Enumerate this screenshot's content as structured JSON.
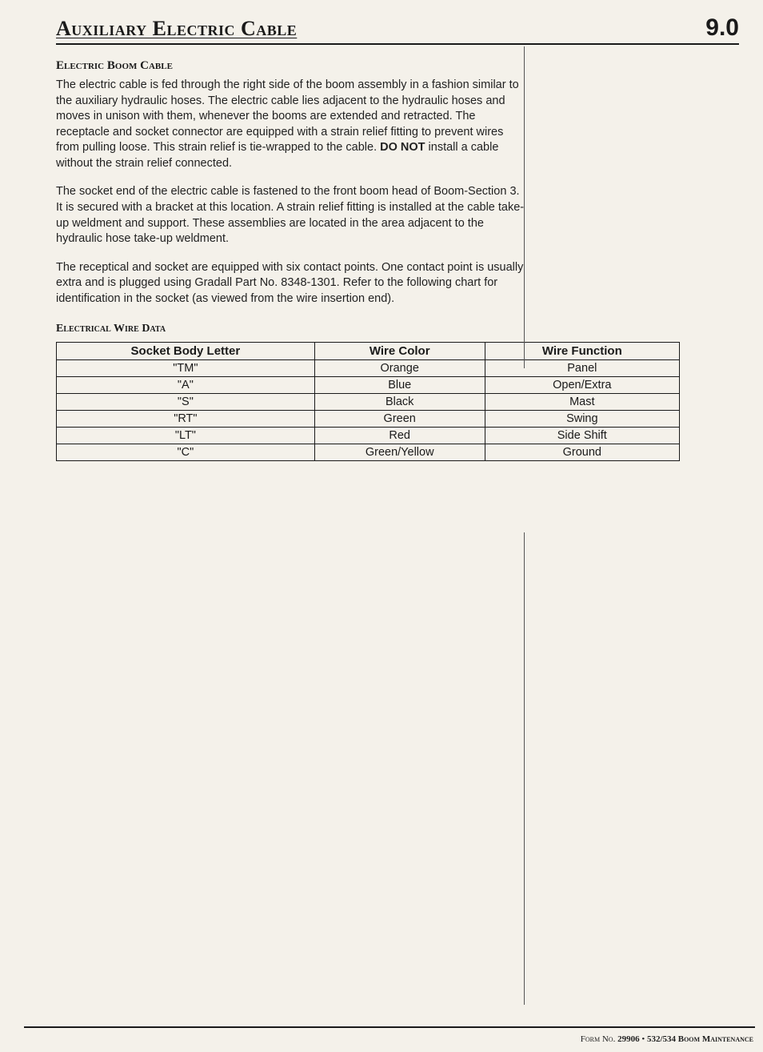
{
  "header": {
    "title": "Auxiliary Electric Cable",
    "section_number": "9.0"
  },
  "section1": {
    "heading": "Electric Boom Cable",
    "para1_a": "The electric cable is fed through the right side of the boom assembly in a fashion similar to the auxiliary hydraulic hoses. The electric cable lies adjacent to the hydraulic hoses and moves in unison with them, whenever the booms are extended and retracted. The receptacle and socket connector are equipped with a strain relief fitting to prevent wires from pulling loose. This strain relief is tie-wrapped to the cable. ",
    "para1_bold": "DO NOT",
    "para1_b": " install a cable without the strain relief connected.",
    "para2": "The socket end of the electric cable is fastened to the front boom head of Boom-Section 3. It is secured with a bracket at this location. A strain relief fitting is installed at the cable take-up weldment and support. These assemblies are located in the area adjacent to the hydraulic hose take-up weldment.",
    "para3": "The receptical and socket are equipped with six contact points. One contact point is usually extra and is plugged using Gradall Part No. 8348-1301. Refer to the following chart for identification in the socket (as viewed from the wire insertion end)."
  },
  "table": {
    "heading": "Electrical Wire Data",
    "columns": [
      "Socket Body Letter",
      "Wire Color",
      "Wire Function"
    ],
    "rows": [
      [
        "\"TM\"",
        "Orange",
        "Panel"
      ],
      [
        "\"A\"",
        "Blue",
        "Open/Extra"
      ],
      [
        "\"S\"",
        "Black",
        "Mast"
      ],
      [
        "\"RT\"",
        "Green",
        "Swing"
      ],
      [
        "\"LT\"",
        "Red",
        "Side Shift"
      ],
      [
        "\"C\"",
        "Green/Yellow",
        "Ground"
      ]
    ]
  },
  "footer": {
    "form_label": "Form No. ",
    "form_no": "29906",
    "sep": " • ",
    "doc": "532/534 Boom Maintenance"
  },
  "style": {
    "page_bg": "#f4f1ea",
    "text_color": "#1a1a1a",
    "rule_color": "#1a1a1a",
    "table_border": "#1a1a1a",
    "body_font_size": 14.5,
    "title_font_size": 26,
    "section_num_font_size": 30
  }
}
